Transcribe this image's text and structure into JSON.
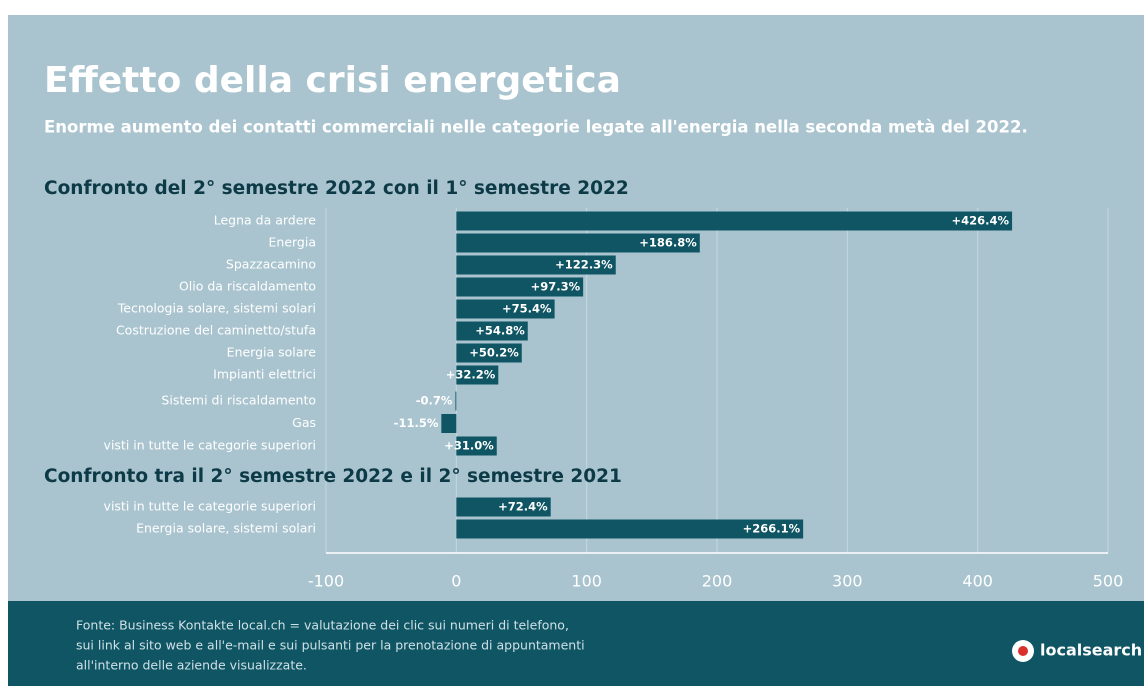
{
  "chart_data": {
    "type": "bar",
    "orientation": "horizontal",
    "title": "Effetto della crisi energetica",
    "subtitle": "Enorme aumento dei contatti commerciali nelle categorie legate all'energia nella seconda metà del 2022.",
    "color": "#0f5563",
    "grid": true,
    "xlim": [
      -100,
      500
    ],
    "xticks": [
      -100,
      0,
      100,
      200,
      300,
      400,
      500
    ],
    "sections": [
      {
        "title": "Confronto del 2° semestre 2022 con il 1° semestre 2022",
        "categories": [
          "Legna da ardere",
          "Energia",
          "Spazzacamino",
          "Olio da riscaldamento",
          "Tecnologia solare, sistemi solari",
          "Costruzione del caminetto/stufa",
          "Energia solare",
          "Impianti elettrici",
          "Sistemi di riscaldamento",
          "Gas",
          "visti in tutte le categorie superiori"
        ],
        "values": [
          426.4,
          186.8,
          122.3,
          97.3,
          75.4,
          54.8,
          50.2,
          32.2,
          -0.7,
          -11.5,
          31.0
        ],
        "value_labels": [
          "+426.4%",
          "+186.8%",
          "+122.3%",
          "+97.3%",
          "+75.4%",
          "+54.8%",
          "+50.2%",
          "+32.2%",
          "-0.7%",
          "-11.5%",
          "+31.0%"
        ]
      },
      {
        "title": "Confronto tra il 2° semestre 2022 e il 2° semestre 2021",
        "categories": [
          "visti in tutte le categorie superiori",
          "Energia solare, sistemi solari"
        ],
        "values": [
          72.4,
          266.1
        ],
        "value_labels": [
          "+72.4%",
          "+266.1%"
        ]
      }
    ]
  },
  "footer": {
    "source": [
      "Fonte: Business Kontakte local.ch = valutazione dei clic sui numeri di telefono,",
      "sui link al sito web e all'e-mail e sui pulsanti per la prenotazione di appuntamenti",
      "all'interno delle aziende visualizzate."
    ],
    "logo": "localsearch"
  }
}
